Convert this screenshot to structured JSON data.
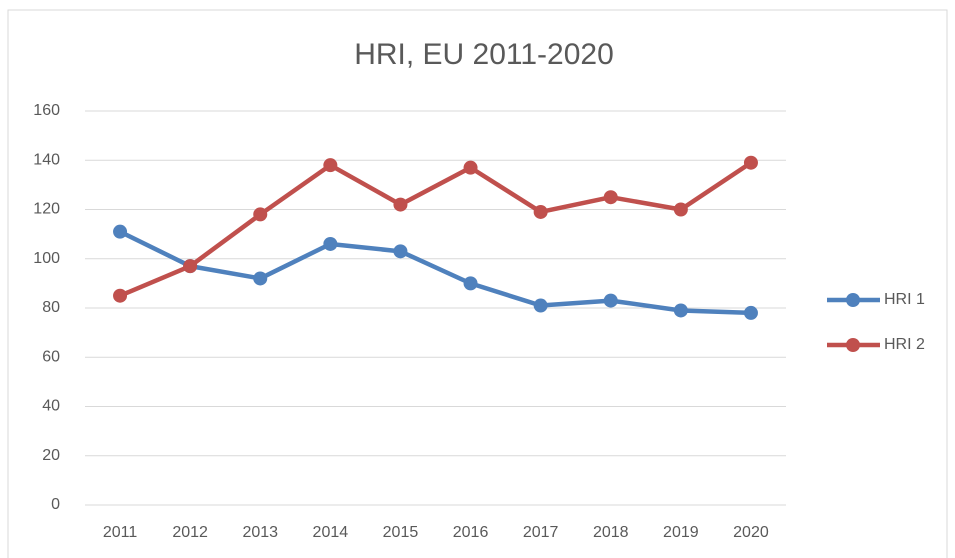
{
  "chart_data": {
    "type": "line",
    "title": "HRI, EU 2011-2020",
    "categories": [
      "2011",
      "2012",
      "2013",
      "2014",
      "2015",
      "2016",
      "2017",
      "2018",
      "2019",
      "2020"
    ],
    "series": [
      {
        "name": "HRI 1",
        "color": "#4f81bd",
        "values": [
          111,
          97,
          92,
          106,
          103,
          90,
          81,
          83,
          79,
          78
        ]
      },
      {
        "name": "HRI 2",
        "color": "#c0504d",
        "values": [
          85,
          97,
          118,
          138,
          122,
          137,
          119,
          125,
          120,
          139
        ]
      }
    ],
    "ylim": [
      0,
      160
    ],
    "yticks": [
      0,
      20,
      40,
      60,
      80,
      100,
      120,
      140,
      160
    ],
    "grid": true,
    "legend": "right"
  }
}
